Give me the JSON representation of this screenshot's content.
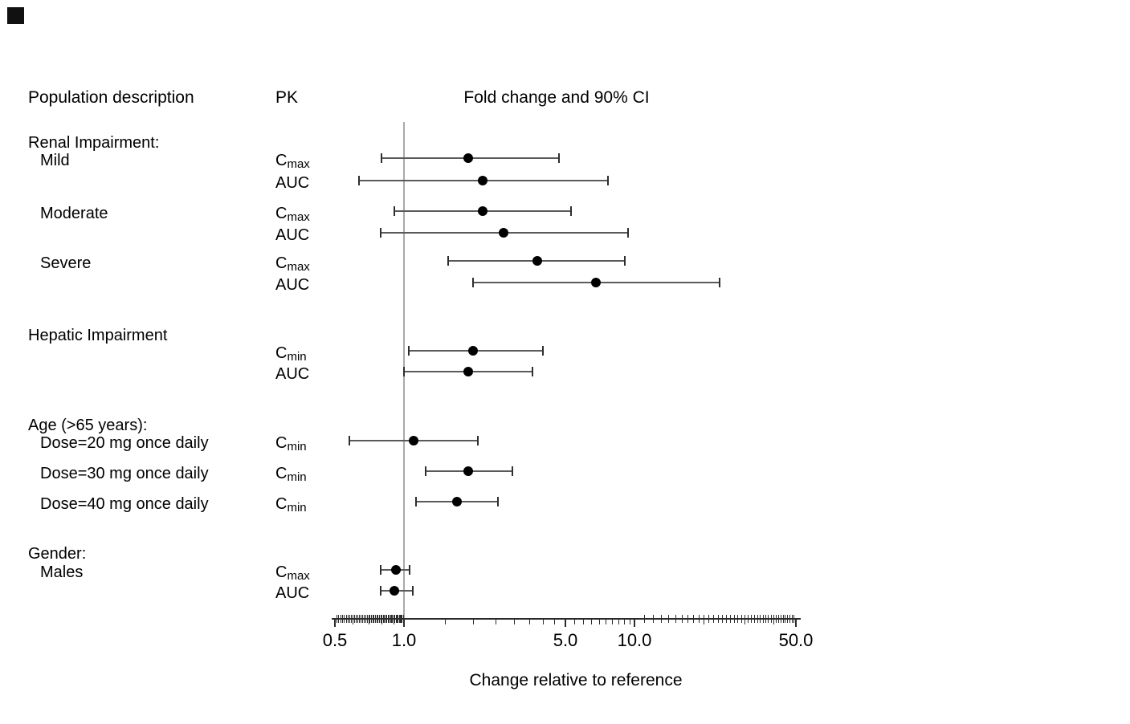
{
  "chart_data": {
    "type": "forest",
    "title_row": {
      "population": "Population description",
      "pk": "PK",
      "plot": "Fold change and 90% CI"
    },
    "x_axis": {
      "scale": "log10",
      "label": "Change relative to reference",
      "major_ticks": [
        0.5,
        1.0,
        5.0,
        10.0,
        50.0
      ],
      "tick_labels": [
        "0.5",
        "1.0",
        "5.0",
        "10.0",
        "50.0"
      ],
      "range": [
        0.48,
        53
      ],
      "reference_line": 1.0,
      "grid": false
    },
    "ci_level": "90%",
    "sections": [
      {
        "heading": "Renal Impairment:",
        "rows": [
          {
            "label": "Mild",
            "pk": {
              "text": "C",
              "sub": "max"
            },
            "estimate": 1.9,
            "ci_low": 0.8,
            "ci_high": 4.7
          },
          {
            "label": "",
            "pk": {
              "text": "AUC",
              "sub": ""
            },
            "estimate": 2.2,
            "ci_low": 0.64,
            "ci_high": 7.7
          },
          {
            "label": "Moderate",
            "pk": {
              "text": "C",
              "sub": "max"
            },
            "estimate": 2.2,
            "ci_low": 0.91,
            "ci_high": 5.3
          },
          {
            "label": "",
            "pk": {
              "text": "AUC",
              "sub": ""
            },
            "estimate": 2.7,
            "ci_low": 0.79,
            "ci_high": 9.4
          },
          {
            "label": "Severe",
            "pk": {
              "text": "C",
              "sub": "max"
            },
            "estimate": 3.8,
            "ci_low": 1.55,
            "ci_high": 9.1
          },
          {
            "label": "",
            "pk": {
              "text": "AUC",
              "sub": ""
            },
            "estimate": 6.8,
            "ci_low": 2.0,
            "ci_high": 23.5
          }
        ]
      },
      {
        "heading": "Hepatic Impairment",
        "rows": [
          {
            "label": "",
            "pk": {
              "text": "C",
              "sub": "min"
            },
            "estimate": 2.0,
            "ci_low": 1.05,
            "ci_high": 4.0
          },
          {
            "label": "",
            "pk": {
              "text": "AUC",
              "sub": ""
            },
            "estimate": 1.9,
            "ci_low": 1.0,
            "ci_high": 3.6
          }
        ]
      },
      {
        "heading": "Age (>65 years):",
        "rows": [
          {
            "label": "Dose=20 mg once daily",
            "pk": {
              "text": "C",
              "sub": "min"
            },
            "estimate": 1.1,
            "ci_low": 0.58,
            "ci_high": 2.1
          },
          {
            "label": "Dose=30 mg once daily",
            "pk": {
              "text": "C",
              "sub": "min"
            },
            "estimate": 1.9,
            "ci_low": 1.24,
            "ci_high": 2.95
          },
          {
            "label": "Dose=40 mg once daily",
            "pk": {
              "text": "C",
              "sub": "min"
            },
            "estimate": 1.7,
            "ci_low": 1.13,
            "ci_high": 2.55
          }
        ]
      },
      {
        "heading": "Gender:",
        "rows": [
          {
            "label": "Males",
            "pk": {
              "text": "C",
              "sub": "max"
            },
            "estimate": 0.92,
            "ci_low": 0.79,
            "ci_high": 1.06
          },
          {
            "label": "",
            "pk": {
              "text": "AUC",
              "sub": ""
            },
            "estimate": 0.91,
            "ci_low": 0.79,
            "ci_high": 1.09
          }
        ]
      }
    ]
  }
}
